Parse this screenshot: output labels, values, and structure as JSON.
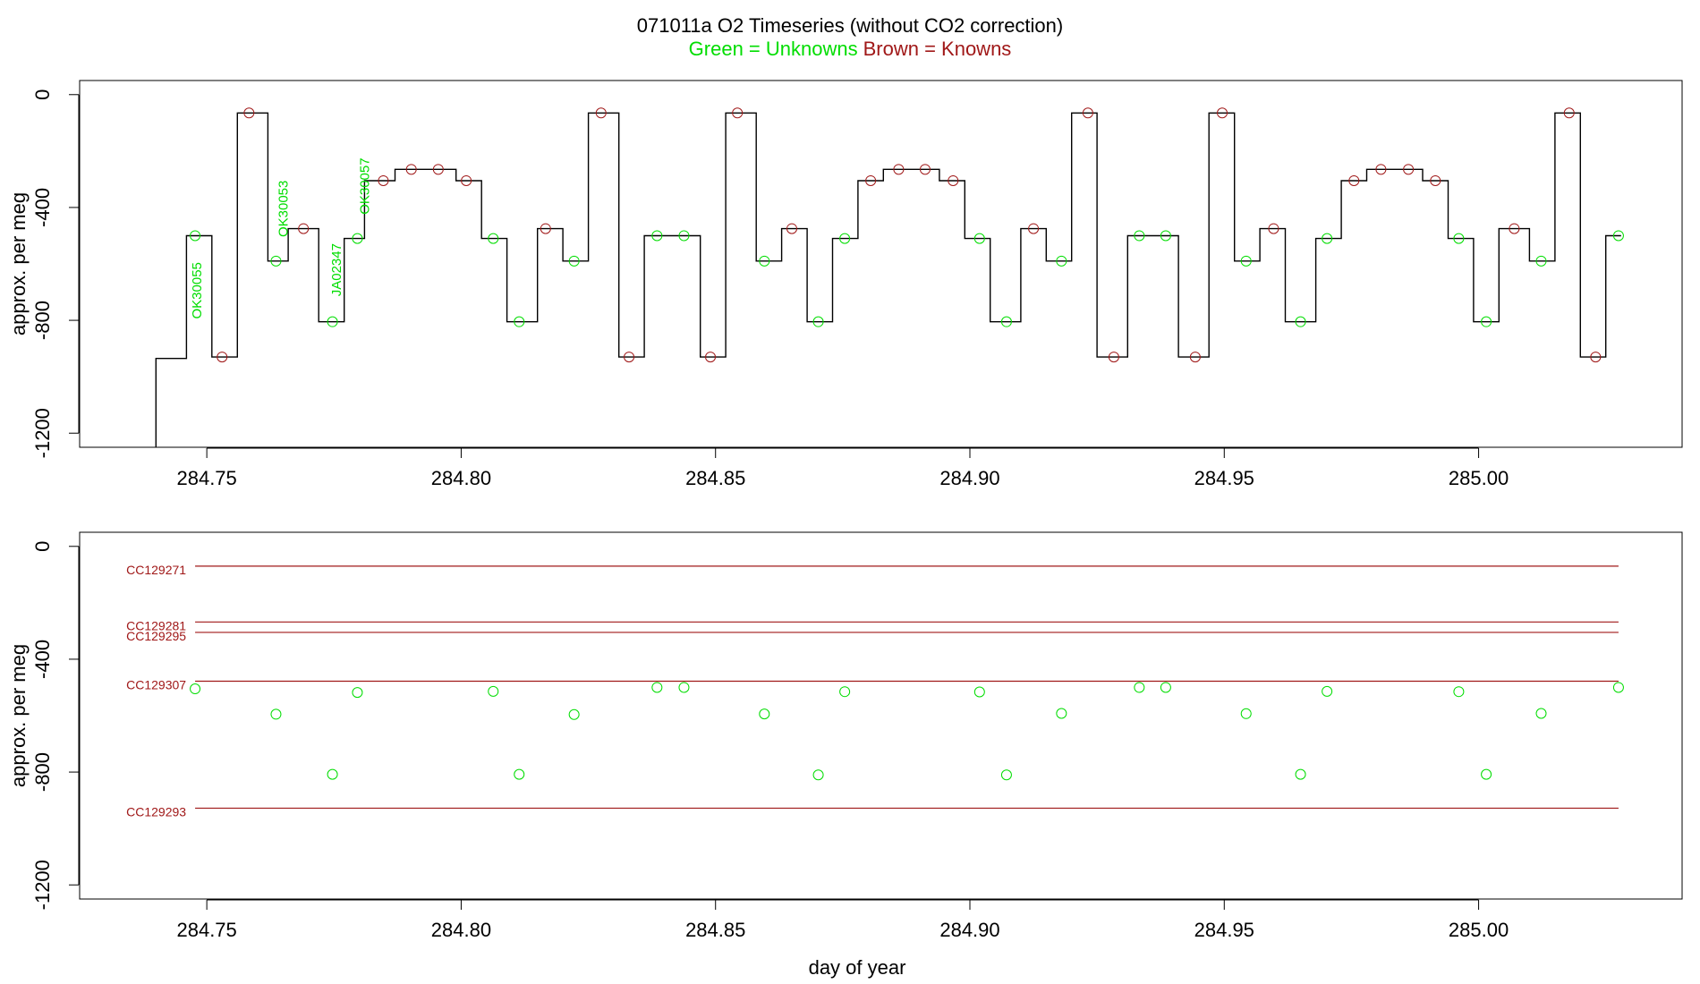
{
  "title": {
    "line1": "071011a   O2 Timeseries (without CO2 correction)",
    "green_label": "Green = Unknowns",
    "brown_label": "Brown = Knowns"
  },
  "colors": {
    "unknown": "#00dd00",
    "known": "#a01818",
    "trace": "#000000"
  },
  "chart_data": [
    {
      "type": "line",
      "panel": "top",
      "ylabel": "approx. per meg",
      "xlabel": "",
      "xlim": [
        284.725,
        285.04
      ],
      "ylim": [
        -1250,
        50
      ],
      "x_ticks": [
        "284.75",
        "284.80",
        "284.85",
        "284.90",
        "284.95",
        "285.00"
      ],
      "y_ticks": [
        "0",
        "-400",
        "-800",
        "-1200"
      ],
      "trace_segments": [
        {
          "x_start": 284.74,
          "x_end": 284.746,
          "value": -935
        },
        {
          "x_start": 284.746,
          "x_end": 284.751,
          "value": -500
        },
        {
          "x_start": 284.751,
          "x_end": 284.756,
          "value": -930
        },
        {
          "x_start": 284.756,
          "x_end": 284.762,
          "value": -65
        },
        {
          "x_start": 284.762,
          "x_end": 284.766,
          "value": -590
        },
        {
          "x_start": 284.766,
          "x_end": 284.772,
          "value": -475
        },
        {
          "x_start": 284.772,
          "x_end": 284.777,
          "value": -805
        },
        {
          "x_start": 284.777,
          "x_end": 284.781,
          "value": -510
        },
        {
          "x_start": 284.781,
          "x_end": 284.787,
          "value": -305
        },
        {
          "x_start": 284.787,
          "x_end": 284.799,
          "value": -265
        },
        {
          "x_start": 284.799,
          "x_end": 284.804,
          "value": -305
        },
        {
          "x_start": 284.804,
          "x_end": 284.809,
          "value": -510
        },
        {
          "x_start": 284.809,
          "x_end": 284.815,
          "value": -805
        },
        {
          "x_start": 284.815,
          "x_end": 284.82,
          "value": -475
        },
        {
          "x_start": 284.82,
          "x_end": 284.825,
          "value": -590
        },
        {
          "x_start": 284.825,
          "x_end": 284.831,
          "value": -65
        },
        {
          "x_start": 284.831,
          "x_end": 284.836,
          "value": -930
        },
        {
          "x_start": 284.836,
          "x_end": 284.847,
          "value": -500
        },
        {
          "x_start": 284.847,
          "x_end": 284.852,
          "value": -930
        },
        {
          "x_start": 284.852,
          "x_end": 284.858,
          "value": -65
        },
        {
          "x_start": 284.858,
          "x_end": 284.863,
          "value": -590
        },
        {
          "x_start": 284.863,
          "x_end": 284.868,
          "value": -475
        },
        {
          "x_start": 284.868,
          "x_end": 284.873,
          "value": -805
        },
        {
          "x_start": 284.873,
          "x_end": 284.878,
          "value": -510
        },
        {
          "x_start": 284.878,
          "x_end": 284.883,
          "value": -305
        },
        {
          "x_start": 284.883,
          "x_end": 284.894,
          "value": -265
        },
        {
          "x_start": 284.894,
          "x_end": 284.899,
          "value": -305
        },
        {
          "x_start": 284.899,
          "x_end": 284.904,
          "value": -510
        },
        {
          "x_start": 284.904,
          "x_end": 284.91,
          "value": -805
        },
        {
          "x_start": 284.91,
          "x_end": 284.915,
          "value": -475
        },
        {
          "x_start": 284.915,
          "x_end": 284.92,
          "value": -590
        },
        {
          "x_start": 284.92,
          "x_end": 284.925,
          "value": -65
        },
        {
          "x_start": 284.925,
          "x_end": 284.931,
          "value": -930
        },
        {
          "x_start": 284.931,
          "x_end": 284.941,
          "value": -500
        },
        {
          "x_start": 284.941,
          "x_end": 284.947,
          "value": -930
        },
        {
          "x_start": 284.947,
          "x_end": 284.952,
          "value": -65
        },
        {
          "x_start": 284.952,
          "x_end": 284.957,
          "value": -590
        },
        {
          "x_start": 284.957,
          "x_end": 284.962,
          "value": -475
        },
        {
          "x_start": 284.962,
          "x_end": 284.968,
          "value": -805
        },
        {
          "x_start": 284.968,
          "x_end": 284.973,
          "value": -510
        },
        {
          "x_start": 284.973,
          "x_end": 284.978,
          "value": -305
        },
        {
          "x_start": 284.978,
          "x_end": 284.989,
          "value": -265
        },
        {
          "x_start": 284.989,
          "x_end": 284.994,
          "value": -305
        },
        {
          "x_start": 284.994,
          "x_end": 284.999,
          "value": -510
        },
        {
          "x_start": 284.999,
          "x_end": 285.004,
          "value": -805
        },
        {
          "x_start": 285.004,
          "x_end": 285.01,
          "value": -475
        },
        {
          "x_start": 285.01,
          "x_end": 285.015,
          "value": -590
        },
        {
          "x_start": 285.015,
          "x_end": 285.02,
          "value": -65
        },
        {
          "x_start": 285.02,
          "x_end": 285.025,
          "value": -930
        },
        {
          "x_start": 285.025,
          "x_end": 285.028,
          "value": -500
        }
      ],
      "unknown_points": [
        {
          "x": 284.7477,
          "y": -500
        },
        {
          "x": 284.7636,
          "y": -590
        },
        {
          "x": 284.7747,
          "y": -805
        },
        {
          "x": 284.7796,
          "y": -510
        },
        {
          "x": 284.8063,
          "y": -510
        },
        {
          "x": 284.8114,
          "y": -805
        },
        {
          "x": 284.8222,
          "y": -590
        },
        {
          "x": 284.8385,
          "y": -500
        },
        {
          "x": 284.8438,
          "y": -500
        },
        {
          "x": 284.8596,
          "y": -590
        },
        {
          "x": 284.8702,
          "y": -805
        },
        {
          "x": 284.8754,
          "y": -510
        },
        {
          "x": 284.9019,
          "y": -510
        },
        {
          "x": 284.9072,
          "y": -805
        },
        {
          "x": 284.918,
          "y": -590
        },
        {
          "x": 284.9333,
          "y": -500
        },
        {
          "x": 284.9385,
          "y": -500
        },
        {
          "x": 284.9543,
          "y": -590
        },
        {
          "x": 284.965,
          "y": -805
        },
        {
          "x": 284.9702,
          "y": -510
        },
        {
          "x": 284.9961,
          "y": -510
        },
        {
          "x": 285.0015,
          "y": -805
        },
        {
          "x": 285.0123,
          "y": -590
        },
        {
          "x": 285.0275,
          "y": -500
        }
      ],
      "known_points": [
        {
          "x": 284.753,
          "y": -930
        },
        {
          "x": 284.7583,
          "y": -65
        },
        {
          "x": 284.769,
          "y": -475
        },
        {
          "x": 284.7847,
          "y": -305
        },
        {
          "x": 284.7902,
          "y": -265
        },
        {
          "x": 284.7955,
          "y": -265
        },
        {
          "x": 284.801,
          "y": -305
        },
        {
          "x": 284.8166,
          "y": -475
        },
        {
          "x": 284.8275,
          "y": -65
        },
        {
          "x": 284.833,
          "y": -930
        },
        {
          "x": 284.849,
          "y": -930
        },
        {
          "x": 284.8543,
          "y": -65
        },
        {
          "x": 284.865,
          "y": -475
        },
        {
          "x": 284.8805,
          "y": -305
        },
        {
          "x": 284.886,
          "y": -265
        },
        {
          "x": 284.8912,
          "y": -265
        },
        {
          "x": 284.8967,
          "y": -305
        },
        {
          "x": 284.9125,
          "y": -475
        },
        {
          "x": 284.9232,
          "y": -65
        },
        {
          "x": 284.9283,
          "y": -930
        },
        {
          "x": 284.9443,
          "y": -930
        },
        {
          "x": 284.9496,
          "y": -65
        },
        {
          "x": 284.9597,
          "y": -475
        },
        {
          "x": 284.9755,
          "y": -305
        },
        {
          "x": 284.9808,
          "y": -265
        },
        {
          "x": 284.9862,
          "y": -265
        },
        {
          "x": 284.9915,
          "y": -305
        },
        {
          "x": 285.007,
          "y": -475
        },
        {
          "x": 285.0178,
          "y": -65
        },
        {
          "x": 285.023,
          "y": -930
        }
      ],
      "annotations": [
        {
          "text": "OK30055",
          "x": 284.748,
          "y": -795
        },
        {
          "text": "OK30053",
          "x": 284.765,
          "y": -505
        },
        {
          "text": "JA02347",
          "x": 284.7755,
          "y": -715
        },
        {
          "text": "OK30057",
          "x": 284.781,
          "y": -425
        }
      ]
    },
    {
      "type": "scatter",
      "panel": "bottom",
      "xlabel": "day of year",
      "ylabel": "approx. per meg",
      "xlim": [
        284.725,
        285.04
      ],
      "ylim": [
        -1250,
        50
      ],
      "x_ticks": [
        "284.75",
        "284.80",
        "284.85",
        "284.90",
        "284.95",
        "285.00"
      ],
      "y_ticks": [
        "0",
        "-400",
        "-800",
        "-1200"
      ],
      "reference_lines": [
        {
          "name": "CC129271",
          "value": -70
        },
        {
          "name": "CC129281",
          "value": -268
        },
        {
          "name": "CC129295",
          "value": -305
        },
        {
          "name": "CC129307",
          "value": -478
        },
        {
          "name": "CC129293",
          "value": -928
        }
      ],
      "unknown_points": [
        {
          "x": 284.7477,
          "y": -505
        },
        {
          "x": 284.7636,
          "y": -595
        },
        {
          "x": 284.7747,
          "y": -808
        },
        {
          "x": 284.7796,
          "y": -518
        },
        {
          "x": 284.8063,
          "y": -514
        },
        {
          "x": 284.8114,
          "y": -808
        },
        {
          "x": 284.8222,
          "y": -596
        },
        {
          "x": 284.8385,
          "y": -500
        },
        {
          "x": 284.8438,
          "y": -500
        },
        {
          "x": 284.8596,
          "y": -594
        },
        {
          "x": 284.8702,
          "y": -810
        },
        {
          "x": 284.8754,
          "y": -515
        },
        {
          "x": 284.9019,
          "y": -516
        },
        {
          "x": 284.9072,
          "y": -810
        },
        {
          "x": 284.918,
          "y": -592
        },
        {
          "x": 284.9333,
          "y": -500
        },
        {
          "x": 284.9385,
          "y": -500
        },
        {
          "x": 284.9543,
          "y": -593
        },
        {
          "x": 284.965,
          "y": -808
        },
        {
          "x": 284.9702,
          "y": -514
        },
        {
          "x": 284.9961,
          "y": -515
        },
        {
          "x": 285.0015,
          "y": -808
        },
        {
          "x": 285.0123,
          "y": -592
        },
        {
          "x": 285.0275,
          "y": -500
        }
      ]
    }
  ]
}
